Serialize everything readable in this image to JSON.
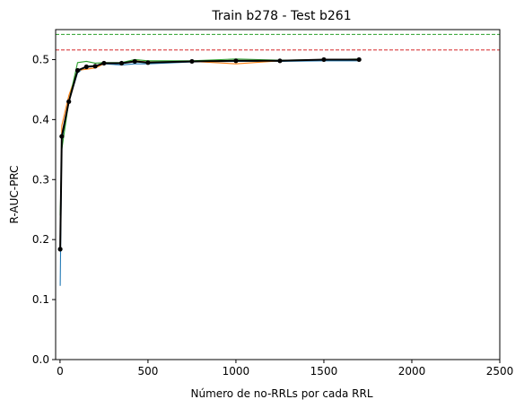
{
  "chart_data": {
    "type": "line",
    "title": "Train b278 - Test b261",
    "xlabel": "Número de no-RRLs por cada RRL",
    "ylabel": "R-AUC-PRC",
    "xlim": [
      -25,
      2500
    ],
    "ylim": [
      0.0,
      0.55
    ],
    "xticks": [
      0,
      500,
      1000,
      1500,
      2000,
      2500
    ],
    "xtick_labels": [
      "0",
      "500",
      "1000",
      "1500",
      "2000",
      "2500"
    ],
    "yticks": [
      0.0,
      0.1,
      0.2,
      0.3,
      0.4,
      0.5
    ],
    "ytick_labels": [
      "0.0",
      "0.1",
      "0.2",
      "0.3",
      "0.4",
      "0.5"
    ],
    "grid": false,
    "hlines": [
      {
        "name": "reference-green",
        "y": 0.542,
        "color": "#2ca02c",
        "style": "dashed"
      },
      {
        "name": "reference-red",
        "y": 0.516,
        "color": "#d62728",
        "style": "dashed"
      }
    ],
    "series": [
      {
        "name": "run-blue",
        "color": "#1f77b4",
        "x": [
          1,
          10,
          50,
          100,
          150,
          200,
          250,
          350,
          425,
          500,
          750,
          1000,
          1250,
          1500,
          1700
        ],
        "y": [
          0.123,
          0.365,
          0.43,
          0.478,
          0.489,
          0.49,
          0.493,
          0.491,
          0.493,
          0.493,
          0.496,
          0.497,
          0.497,
          0.498,
          0.498
        ]
      },
      {
        "name": "run-orange",
        "color": "#ff7f0e",
        "x": [
          1,
          10,
          50,
          100,
          150,
          200,
          250,
          350,
          425,
          500,
          750,
          1000,
          1250,
          1500,
          1700
        ],
        "y": [
          0.19,
          0.39,
          0.44,
          0.482,
          0.484,
          0.486,
          0.493,
          0.495,
          0.498,
          0.496,
          0.497,
          0.493,
          0.498,
          0.5,
          0.499
        ]
      },
      {
        "name": "run-green",
        "color": "#2ca02c",
        "x": [
          1,
          10,
          50,
          100,
          150,
          200,
          250,
          350,
          425,
          500,
          750,
          1000,
          1250,
          1500,
          1700
        ],
        "y": [
          0.24,
          0.35,
          0.43,
          0.495,
          0.497,
          0.494,
          0.495,
          0.495,
          0.5,
          0.498,
          0.498,
          0.501,
          0.499,
          0.5,
          0.501
        ]
      },
      {
        "name": "mean",
        "color": "#000000",
        "markers": true,
        "x": [
          1,
          10,
          50,
          100,
          150,
          200,
          250,
          350,
          425,
          500,
          750,
          1000,
          1250,
          1500,
          1700
        ],
        "y": [
          0.184,
          0.372,
          0.43,
          0.482,
          0.488,
          0.489,
          0.494,
          0.494,
          0.497,
          0.495,
          0.497,
          0.498,
          0.498,
          0.5,
          0.5
        ]
      }
    ]
  }
}
